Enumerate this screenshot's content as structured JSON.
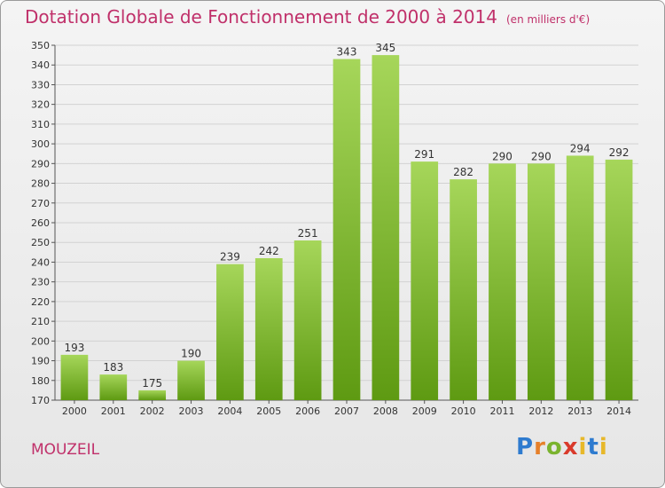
{
  "title": "Dotation Globale de Fonctionnement de 2000 à 2014",
  "unit": "(en milliers d'€)",
  "commune": "MOUZEIL",
  "logo": {
    "p": "P",
    "r": "r",
    "o": "o",
    "x": "x",
    "i": "i",
    "t": "t",
    "i2": "i"
  },
  "colors": {
    "bar_top": "#a6d65a",
    "bar_bottom": "#5e9a12",
    "title": "#c0306a"
  },
  "chart_data": {
    "type": "bar",
    "title": "Dotation Globale de Fonctionnement de 2000 à 2014",
    "subtitle": "(en milliers d'€)",
    "categories": [
      "2000",
      "2001",
      "2002",
      "2003",
      "2004",
      "2005",
      "2006",
      "2007",
      "2008",
      "2009",
      "2010",
      "2011",
      "2012",
      "2013",
      "2014"
    ],
    "values": [
      193,
      183,
      175,
      190,
      239,
      242,
      251,
      343,
      345,
      291,
      282,
      290,
      290,
      294,
      292
    ],
    "ylim": [
      170,
      350
    ],
    "yticks": [
      170,
      180,
      190,
      200,
      210,
      220,
      230,
      240,
      250,
      260,
      270,
      280,
      290,
      300,
      310,
      320,
      330,
      340,
      350
    ],
    "grid": true,
    "legend": "none"
  }
}
